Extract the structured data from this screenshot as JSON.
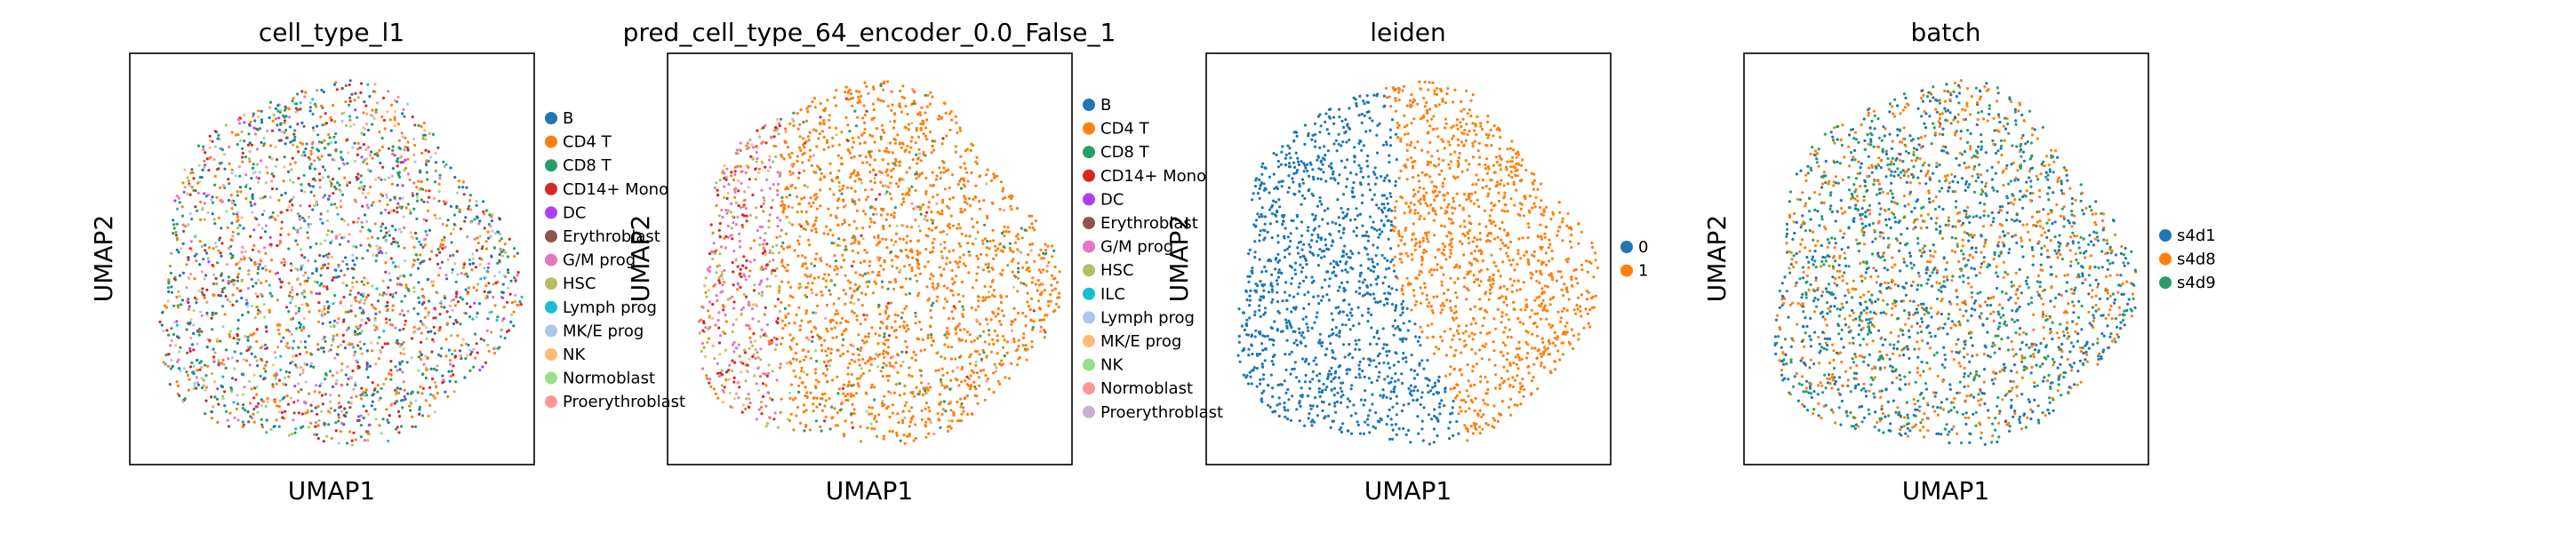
{
  "figure": {
    "background": "#ffffff"
  },
  "chart_data": [
    {
      "type": "scatter",
      "title": "cell_type_l1",
      "xlabel": "UMAP1",
      "ylabel": "UMAP2",
      "grid": false,
      "legend": {
        "placement": "right",
        "entries": [
          {
            "label": "B",
            "color": "#1f77b4"
          },
          {
            "label": "CD4 T",
            "color": "#ff7f0e"
          },
          {
            "label": "CD8 T",
            "color": "#279e68"
          },
          {
            "label": "CD14+ Mono",
            "color": "#d62728"
          },
          {
            "label": "DC",
            "color": "#aa40fc"
          },
          {
            "label": "Erythroblast",
            "color": "#8c564b"
          },
          {
            "label": "G/M prog",
            "color": "#e377c2"
          },
          {
            "label": "HSC",
            "color": "#b5bd61"
          },
          {
            "label": "Lymph prog",
            "color": "#17becf"
          },
          {
            "label": "MK/E prog",
            "color": "#aec7e8"
          },
          {
            "label": "NK",
            "color": "#ffbb78"
          },
          {
            "label": "Normoblast",
            "color": "#98df8a"
          },
          {
            "label": "Proerythroblast",
            "color": "#ff9896"
          }
        ]
      }
    },
    {
      "type": "scatter",
      "title": "pred_cell_type_64_encoder_0.0_False_1",
      "xlabel": "UMAP1",
      "ylabel": "UMAP2",
      "grid": false,
      "legend": {
        "placement": "right",
        "entries": [
          {
            "label": "B",
            "color": "#1f77b4"
          },
          {
            "label": "CD4 T",
            "color": "#ff7f0e"
          },
          {
            "label": "CD8 T",
            "color": "#279e68"
          },
          {
            "label": "CD14+ Mono",
            "color": "#d62728"
          },
          {
            "label": "DC",
            "color": "#aa40fc"
          },
          {
            "label": "Erythroblast",
            "color": "#8c564b"
          },
          {
            "label": "G/M prog",
            "color": "#e377c2"
          },
          {
            "label": "HSC",
            "color": "#b5bd61"
          },
          {
            "label": "ILC",
            "color": "#17becf"
          },
          {
            "label": "Lymph prog",
            "color": "#aec7e8"
          },
          {
            "label": "MK/E prog",
            "color": "#ffbb78"
          },
          {
            "label": "NK",
            "color": "#98df8a"
          },
          {
            "label": "Normoblast",
            "color": "#ff9896"
          },
          {
            "label": "Proerythroblast",
            "color": "#c5b0d5"
          }
        ]
      }
    },
    {
      "type": "scatter",
      "title": "leiden",
      "xlabel": "UMAP1",
      "ylabel": "UMAP2",
      "grid": false,
      "legend": {
        "placement": "right",
        "entries": [
          {
            "label": "0",
            "color": "#1f77b4"
          },
          {
            "label": "1",
            "color": "#ff7f0e"
          }
        ]
      }
    },
    {
      "type": "scatter",
      "title": "batch",
      "xlabel": "UMAP1",
      "ylabel": "UMAP2",
      "grid": false,
      "legend": {
        "placement": "right",
        "entries": [
          {
            "label": "s4d1",
            "color": "#1f77b4"
          },
          {
            "label": "s4d8",
            "color": "#ff7f0e"
          },
          {
            "label": "s4d9",
            "color": "#279e68"
          }
        ]
      }
    }
  ]
}
